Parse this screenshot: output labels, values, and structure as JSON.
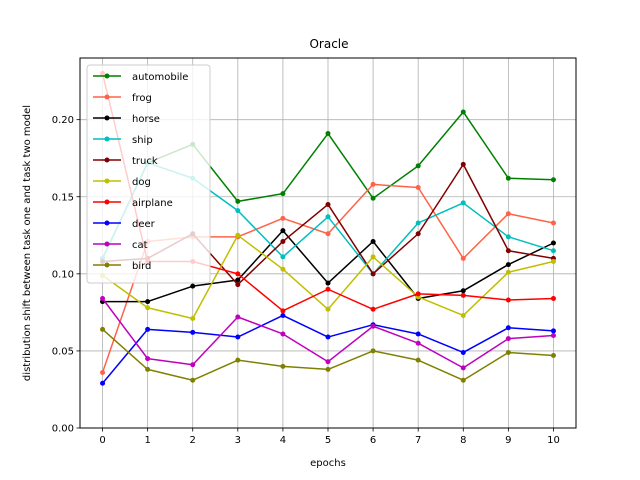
{
  "chart_data": {
    "type": "line",
    "title": "Oracle",
    "xlabel": "epochs",
    "ylabel": "distribution shift between task one and task two model",
    "xlim": [
      -0.5,
      10.5
    ],
    "ylim": [
      0.0,
      0.24
    ],
    "x_ticks": [
      "0",
      "1",
      "2",
      "3",
      "4",
      "5",
      "6",
      "7",
      "8",
      "9",
      "10"
    ],
    "y_ticks": [
      "0.00",
      "0.05",
      "0.10",
      "0.15",
      "0.20"
    ],
    "grid": true,
    "legend_position": "upper-left",
    "x": [
      0,
      1,
      2,
      3,
      4,
      5,
      6,
      7,
      8,
      9,
      10
    ],
    "series": [
      {
        "name": "automobile",
        "color": "#008000",
        "values": [
          0.11,
          0.172,
          0.184,
          0.147,
          0.152,
          0.191,
          0.149,
          0.17,
          0.205,
          0.162,
          0.161
        ]
      },
      {
        "name": "frog",
        "color": "#ff6347",
        "values": [
          0.036,
          0.121,
          0.124,
          0.124,
          0.136,
          0.126,
          0.158,
          0.156,
          0.11,
          0.139,
          0.133
        ]
      },
      {
        "name": "horse",
        "color": "#000000",
        "values": [
          0.082,
          0.082,
          0.092,
          0.096,
          0.128,
          0.094,
          0.121,
          0.084,
          0.089,
          0.106,
          0.12
        ]
      },
      {
        "name": "ship",
        "color": "#00bfbf",
        "values": [
          0.11,
          0.172,
          0.162,
          0.141,
          0.111,
          0.137,
          0.1,
          0.133,
          0.146,
          0.124,
          0.115
        ]
      },
      {
        "name": "truck",
        "color": "#800000",
        "values": [
          0.108,
          0.11,
          0.126,
          0.093,
          0.121,
          0.145,
          0.1,
          0.126,
          0.171,
          0.115,
          0.11
        ]
      },
      {
        "name": "dog",
        "color": "#bfbf00",
        "values": [
          0.099,
          0.078,
          0.071,
          0.125,
          0.103,
          0.077,
          0.111,
          0.085,
          0.073,
          0.101,
          0.108
        ]
      },
      {
        "name": "airplane",
        "color": "#ff0000",
        "values": [
          0.23,
          0.108,
          0.108,
          0.1,
          0.076,
          0.09,
          0.077,
          0.087,
          0.086,
          0.083,
          0.084
        ]
      },
      {
        "name": "deer",
        "color": "#0000ff",
        "values": [
          0.029,
          0.064,
          0.062,
          0.059,
          0.073,
          0.059,
          0.067,
          0.061,
          0.049,
          0.065,
          0.063
        ]
      },
      {
        "name": "cat",
        "color": "#bf00bf",
        "values": [
          0.084,
          0.045,
          0.041,
          0.072,
          0.061,
          0.043,
          0.066,
          0.055,
          0.039,
          0.058,
          0.06
        ]
      },
      {
        "name": "bird",
        "color": "#808000",
        "values": [
          0.064,
          0.038,
          0.031,
          0.044,
          0.04,
          0.038,
          0.05,
          0.044,
          0.031,
          0.049,
          0.047
        ]
      }
    ]
  }
}
